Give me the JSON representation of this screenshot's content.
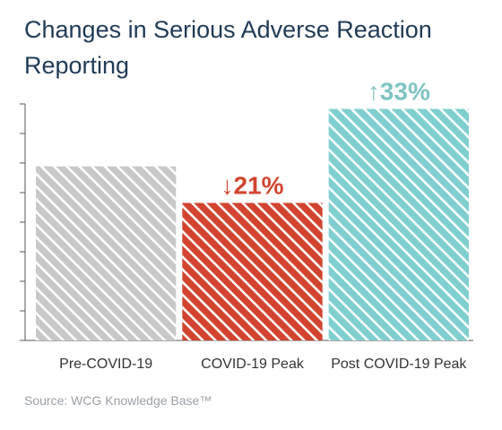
{
  "title": "Changes in Serious Adverse Reaction Reporting",
  "source": "Source: WCG Knowledge Base™",
  "chart_data": {
    "type": "bar",
    "title": "Changes in Serious Adverse Reaction Reporting",
    "xlabel": "",
    "ylabel": "",
    "categories": [
      "Pre-COVID-19",
      "COVID-19 Peak",
      "Post COVID-19 Peak"
    ],
    "values": [
      100,
      79,
      133
    ],
    "ylim": [
      0,
      140
    ],
    "grid": false,
    "legend": "none",
    "bar_colors": [
      "#c8c8c8",
      "#d2442f",
      "#7fcfd1"
    ],
    "annotations": [
      {
        "category": "COVID-19 Peak",
        "text": "↓21%",
        "color": "#d2442f"
      },
      {
        "category": "Post COVID-19 Peak",
        "text": "↑33%",
        "color": "#7fc4c4"
      }
    ]
  }
}
